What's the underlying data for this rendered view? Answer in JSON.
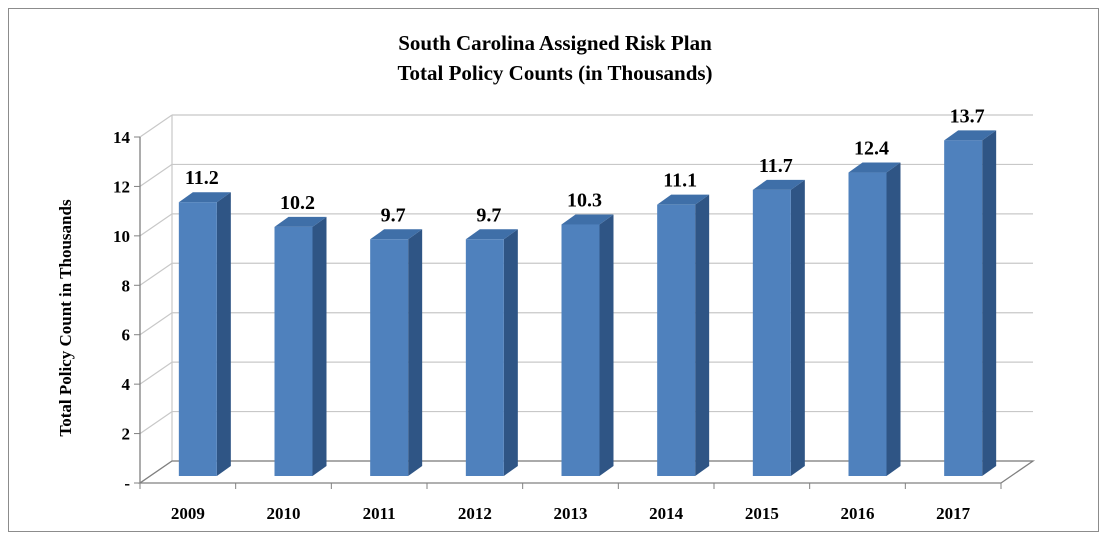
{
  "chart_data": {
    "type": "bar",
    "title": "South Carolina Assigned Risk Plan",
    "subtitle": "Total Policy Counts (in Thousands)",
    "xlabel": "",
    "ylabel": "Total Policy Count in Thousands",
    "categories": [
      "2009",
      "2010",
      "2011",
      "2012",
      "2013",
      "2014",
      "2015",
      "2016",
      "2017"
    ],
    "values": [
      11.2,
      10.2,
      9.7,
      9.7,
      10.3,
      11.1,
      11.7,
      12.4,
      13.7
    ],
    "data_labels": [
      "11.2",
      "10.2",
      "9.7",
      "9.7",
      "10.3",
      "11.1",
      "11.7",
      "12.4",
      "13.7"
    ],
    "ylim": [
      0,
      14
    ],
    "yticks": [
      0,
      2,
      4,
      6,
      8,
      10,
      12,
      14
    ],
    "ytick_labels": [
      "-",
      "2",
      "4",
      "6",
      "8",
      "10",
      "12",
      "14"
    ],
    "grid": true,
    "style": "3d-column",
    "colors": {
      "bar_front": "#4f81bd",
      "bar_side": "#2f5585",
      "bar_top": "#3f6fa8",
      "grid": "#c8c8c8",
      "axis": "#808080",
      "text": "#000000"
    }
  }
}
